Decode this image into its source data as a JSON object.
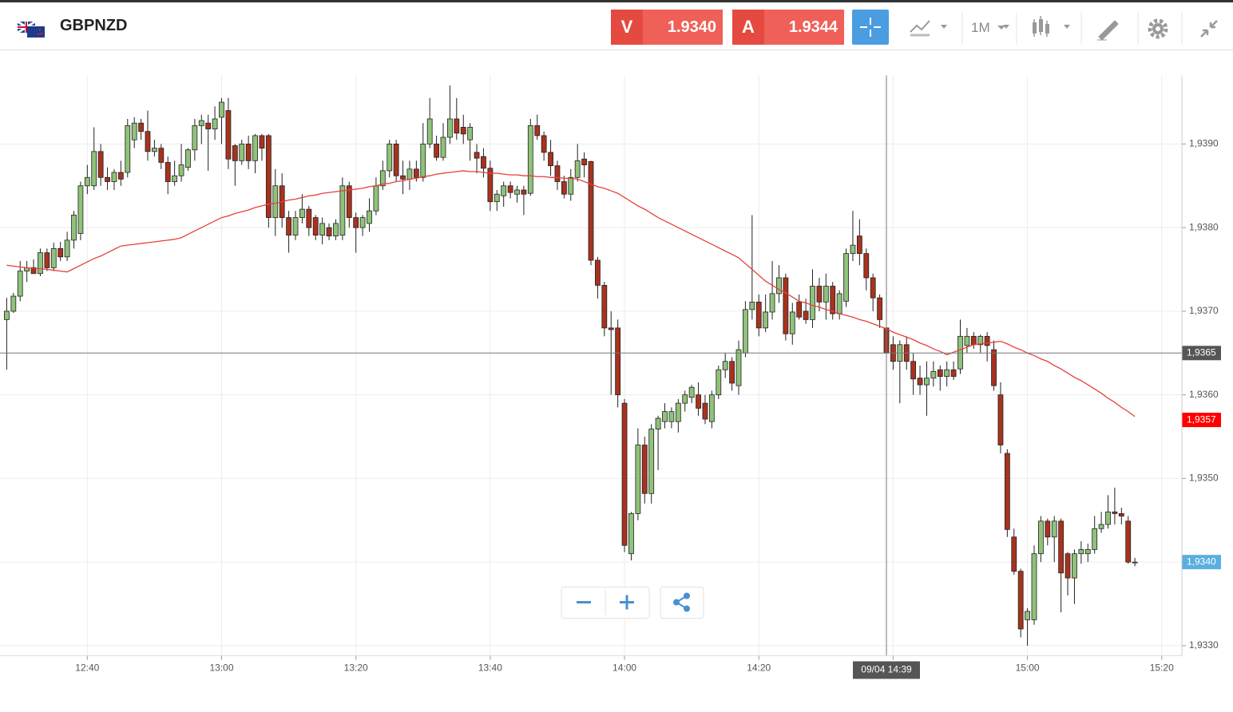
{
  "toolbar": {
    "symbol": "GBPNZD",
    "sell": {
      "label": "V",
      "price": "1.9340"
    },
    "buy": {
      "label": "A",
      "price": "1.9344"
    },
    "timeframe": "1M"
  },
  "chart_data": {
    "type": "candlestick",
    "x": [
      "12:28",
      "12:29",
      "12:30",
      "12:31",
      "12:32",
      "12:33",
      "12:34",
      "12:35",
      "12:36",
      "12:37",
      "12:38",
      "12:39",
      "12:40",
      "12:41",
      "12:42",
      "12:43",
      "12:44",
      "12:45",
      "12:46",
      "12:47",
      "12:48",
      "12:49",
      "12:50",
      "12:51",
      "12:52",
      "12:53",
      "12:54",
      "12:55",
      "12:56",
      "12:57",
      "12:58",
      "12:59",
      "13:00",
      "13:01",
      "13:02",
      "13:03",
      "13:04",
      "13:05",
      "13:06",
      "13:07",
      "13:08",
      "13:09",
      "13:10",
      "13:11",
      "13:12",
      "13:13",
      "13:14",
      "13:15",
      "13:16",
      "13:17",
      "13:18",
      "13:19",
      "13:20",
      "13:21",
      "13:22",
      "13:23",
      "13:24",
      "13:25",
      "13:26",
      "13:27",
      "13:28",
      "13:29",
      "13:30",
      "13:31",
      "13:32",
      "13:33",
      "13:34",
      "13:35",
      "13:36",
      "13:37",
      "13:38",
      "13:39",
      "13:40",
      "13:41",
      "13:42",
      "13:43",
      "13:44",
      "13:45",
      "13:46",
      "13:47",
      "13:48",
      "13:49",
      "13:50",
      "13:51",
      "13:52",
      "13:53",
      "13:54",
      "13:55",
      "13:56",
      "13:57",
      "13:58",
      "13:59",
      "14:00",
      "14:01",
      "14:02",
      "14:03",
      "14:04",
      "14:05",
      "14:06",
      "14:07",
      "14:08",
      "14:09",
      "14:10",
      "14:11",
      "14:12",
      "14:13",
      "14:14",
      "14:15",
      "14:16",
      "14:17",
      "14:18",
      "14:19",
      "14:20",
      "14:21",
      "14:22",
      "14:23",
      "14:24",
      "14:25",
      "14:26",
      "14:27",
      "14:28",
      "14:29",
      "14:30",
      "14:31",
      "14:32",
      "14:33",
      "14:34",
      "14:35",
      "14:36",
      "14:37",
      "14:38",
      "14:39",
      "14:40",
      "14:41",
      "14:42",
      "14:43",
      "14:44",
      "14:45",
      "14:46",
      "14:47",
      "14:48",
      "14:49",
      "14:50",
      "14:51",
      "14:52",
      "14:53",
      "14:54",
      "14:55",
      "14:56",
      "14:57",
      "14:58",
      "14:59",
      "15:00",
      "15:01",
      "15:02",
      "15:03",
      "15:04",
      "15:05",
      "15:06",
      "15:07",
      "15:08",
      "15:09",
      "15:10",
      "15:11",
      "15:12",
      "15:13",
      "15:14",
      "15:15",
      "15:16"
    ],
    "open": [
      1.9369,
      1.937,
      1.93718,
      1.93748,
      1.93752,
      1.93745,
      1.9377,
      1.93752,
      1.93775,
      1.93765,
      1.93785,
      1.93793,
      1.9385,
      1.9385,
      1.93891,
      1.9386,
      1.93855,
      1.93866,
      1.93866,
      1.93905,
      1.93925,
      1.93915,
      1.93891,
      1.93895,
      1.93878,
      1.93855,
      1.93862,
      1.93872,
      1.93893,
      1.93922,
      1.93925,
      1.93918,
      1.93932,
      1.9394,
      1.93898,
      1.9388,
      1.939,
      1.9388,
      1.9391,
      1.9391,
      1.93812,
      1.9385,
      1.93812,
      1.93791,
      1.93812,
      1.93822,
      1.93812,
      1.93791,
      1.938,
      1.9379,
      1.93791,
      1.9385,
      1.93812,
      1.938,
      1.93805,
      1.9382,
      1.9385,
      1.93868,
      1.939,
      1.93862,
      1.93858,
      1.9387,
      1.9386,
      1.939,
      1.939,
      1.93884,
      1.93908,
      1.9393,
      1.9392,
      1.93905,
      1.9389,
      1.93885,
      1.93871,
      1.93831,
      1.93838,
      1.9385,
      1.9384,
      1.93845,
      1.93841,
      1.93922,
      1.9391,
      1.9389,
      1.93874,
      1.93855,
      1.9384,
      1.9386,
      1.93882,
      1.93879,
      1.93761,
      1.93731,
      1.9368,
      1.9368,
      1.9359,
      1.9341,
      1.93458,
      1.9354,
      1.93482,
      1.93559,
      1.93568,
      1.93568,
      1.93568,
      1.9359,
      1.93597,
      1.936,
      1.9359,
      1.93568,
      1.936,
      1.9363,
      1.9364,
      1.93611,
      1.9365,
      1.93702,
      1.93711,
      1.9368,
      1.93699,
      1.93721,
      1.9374,
      1.93673,
      1.93711,
      1.937,
      1.9369,
      1.9373,
      1.93711,
      1.9373,
      1.93697,
      1.93712,
      1.93769,
      1.9379,
      1.93769,
      1.9374,
      1.93716,
      1.9368,
      1.9366,
      1.9364,
      1.9366,
      1.9364,
      1.9362,
      1.93612,
      1.9362,
      1.9363,
      1.93622,
      1.9363,
      1.93631,
      1.93659,
      1.9367,
      1.9366,
      1.9367,
      1.93654,
      1.936,
      1.9353,
      1.9343,
      1.93389,
      1.93331,
      1.93331,
      1.9341,
      1.93449,
      1.9343,
      1.93449,
      1.9341,
      1.93381,
      1.9341,
      1.9341,
      1.93415,
      1.9344,
      1.93445,
      1.9346,
      1.93458,
      1.93449,
      1.934
    ],
    "high": [
      1.93716,
      1.93722,
      1.9376,
      1.9376,
      1.93762,
      1.93775,
      1.93775,
      1.93782,
      1.93783,
      1.93795,
      1.9382,
      1.93855,
      1.93875,
      1.9392,
      1.939,
      1.93872,
      1.9387,
      1.9388,
      1.9393,
      1.93932,
      1.9393,
      1.9394,
      1.93905,
      1.939,
      1.93885,
      1.9388,
      1.939,
      1.93895,
      1.9393,
      1.93935,
      1.93935,
      1.93945,
      1.93955,
      1.93955,
      1.939,
      1.93905,
      1.9391,
      1.93912,
      1.93912,
      1.93912,
      1.9387,
      1.93865,
      1.9382,
      1.9382,
      1.9384,
      1.93826,
      1.93815,
      1.93812,
      1.93805,
      1.9381,
      1.9386,
      1.93855,
      1.93818,
      1.93815,
      1.93835,
      1.9386,
      1.9388,
      1.93905,
      1.93905,
      1.9388,
      1.9388,
      1.9388,
      1.93925,
      1.93955,
      1.9391,
      1.93925,
      1.9397,
      1.93955,
      1.93935,
      1.93925,
      1.939,
      1.93895,
      1.9388,
      1.93845,
      1.93855,
      1.93855,
      1.9385,
      1.9385,
      1.9393,
      1.93935,
      1.93915,
      1.93905,
      1.9388,
      1.93862,
      1.9387,
      1.939,
      1.9389,
      1.9388,
      1.93765,
      1.93735,
      1.937,
      1.9369,
      1.93595,
      1.9346,
      1.9356,
      1.9355,
      1.93565,
      1.93575,
      1.9359,
      1.93585,
      1.93595,
      1.93605,
      1.93612,
      1.93615,
      1.936,
      1.93605,
      1.93635,
      1.9365,
      1.93645,
      1.93665,
      1.93712,
      1.93815,
      1.9372,
      1.9372,
      1.9376,
      1.93755,
      1.93745,
      1.9371,
      1.9372,
      1.93715,
      1.9375,
      1.9374,
      1.93745,
      1.93735,
      1.93725,
      1.93775,
      1.9382,
      1.9381,
      1.93775,
      1.93745,
      1.9372,
      1.93688,
      1.9367,
      1.93665,
      1.9367,
      1.9365,
      1.93635,
      1.9364,
      1.9364,
      1.93635,
      1.9364,
      1.9364,
      1.9369,
      1.9368,
      1.93675,
      1.93672,
      1.93675,
      1.93665,
      1.93615,
      1.93535,
      1.9344,
      1.93392,
      1.93345,
      1.9342,
      1.93455,
      1.93452,
      1.93455,
      1.93452,
      1.93412,
      1.93415,
      1.93425,
      1.93422,
      1.93455,
      1.9346,
      1.9348,
      1.93489,
      1.93465,
      1.93455,
      1.93405
    ],
    "low": [
      1.9363,
      1.93698,
      1.93712,
      1.93735,
      1.93745,
      1.93742,
      1.93748,
      1.93748,
      1.9376,
      1.9376,
      1.93775,
      1.93785,
      1.9384,
      1.93845,
      1.9385,
      1.93845,
      1.93845,
      1.9385,
      1.9386,
      1.93895,
      1.93905,
      1.9388,
      1.93885,
      1.9387,
      1.9384,
      1.9385,
      1.93855,
      1.93868,
      1.9388,
      1.939,
      1.93868,
      1.93905,
      1.939,
      1.9387,
      1.9385,
      1.93875,
      1.9387,
      1.93865,
      1.9388,
      1.938,
      1.9379,
      1.938,
      1.9377,
      1.93785,
      1.93805,
      1.9379,
      1.93785,
      1.9378,
      1.93785,
      1.93785,
      1.93785,
      1.938,
      1.9377,
      1.9379,
      1.93795,
      1.93815,
      1.93845,
      1.9386,
      1.93855,
      1.9384,
      1.93845,
      1.93855,
      1.93855,
      1.93895,
      1.9388,
      1.9388,
      1.939,
      1.93905,
      1.939,
      1.9388,
      1.93865,
      1.9386,
      1.9382,
      1.9382,
      1.93825,
      1.93835,
      1.9383,
      1.93815,
      1.93838,
      1.93905,
      1.9388,
      1.93862,
      1.93845,
      1.93835,
      1.93832,
      1.93855,
      1.9386,
      1.93755,
      1.93715,
      1.9367,
      1.936,
      1.93585,
      1.93412,
      1.93402,
      1.9345,
      1.9347,
      1.9347,
      1.9351,
      1.9356,
      1.9356,
      1.93555,
      1.9358,
      1.9359,
      1.93575,
      1.93565,
      1.9356,
      1.93595,
      1.9362,
      1.93605,
      1.936,
      1.93645,
      1.9369,
      1.9367,
      1.93675,
      1.9369,
      1.9371,
      1.93665,
      1.9366,
      1.9369,
      1.93685,
      1.9368,
      1.937,
      1.9369,
      1.9369,
      1.9369,
      1.93705,
      1.9376,
      1.93755,
      1.93725,
      1.937,
      1.9368,
      1.9364,
      1.9363,
      1.9359,
      1.9363,
      1.936,
      1.936,
      1.93575,
      1.9361,
      1.93605,
      1.9361,
      1.93618,
      1.93625,
      1.9365,
      1.93655,
      1.9365,
      1.9364,
      1.93605,
      1.9353,
      1.9343,
      1.93385,
      1.9331,
      1.933,
      1.93325,
      1.934,
      1.9342,
      1.934,
      1.9334,
      1.9336,
      1.9335,
      1.93398,
      1.934,
      1.9341,
      1.93435,
      1.9344,
      1.93445,
      1.93445,
      1.93398,
      1.93395
    ],
    "close": [
      1.937,
      1.93718,
      1.93748,
      1.93752,
      1.93745,
      1.9377,
      1.93752,
      1.93775,
      1.93765,
      1.93785,
      1.93815,
      1.9385,
      1.9386,
      1.93891,
      1.9386,
      1.93855,
      1.93866,
      1.93858,
      1.93922,
      1.93925,
      1.93915,
      1.93891,
      1.93895,
      1.93878,
      1.93855,
      1.93862,
      1.93875,
      1.93893,
      1.93922,
      1.93928,
      1.93918,
      1.9393,
      1.9395,
      1.93882,
      1.9388,
      1.939,
      1.9388,
      1.9391,
      1.93895,
      1.93812,
      1.9385,
      1.93812,
      1.93791,
      1.93812,
      1.93822,
      1.938,
      1.93791,
      1.93805,
      1.9379,
      1.93805,
      1.9385,
      1.93812,
      1.938,
      1.93812,
      1.9382,
      1.9385,
      1.93868,
      1.939,
      1.93862,
      1.93858,
      1.9387,
      1.9386,
      1.939,
      1.9393,
      1.93884,
      1.93908,
      1.9393,
      1.93913,
      1.93912,
      1.9392,
      1.93883,
      1.93871,
      1.93831,
      1.9384,
      1.9385,
      1.93842,
      1.93845,
      1.9384,
      1.93922,
      1.9391,
      1.9389,
      1.93874,
      1.93855,
      1.9384,
      1.9386,
      1.9388,
      1.93875,
      1.93761,
      1.93731,
      1.9368,
      1.93678,
      1.936,
      1.9342,
      1.93458,
      1.9354,
      1.93482,
      1.93559,
      1.93572,
      1.9358,
      1.9358,
      1.9359,
      1.936,
      1.93609,
      1.93584,
      1.93571,
      1.936,
      1.9363,
      1.9364,
      1.93614,
      1.93654,
      1.93702,
      1.93711,
      1.9368,
      1.93699,
      1.93721,
      1.9374,
      1.93673,
      1.93699,
      1.93693,
      1.9369,
      1.9373,
      1.93711,
      1.9373,
      1.93697,
      1.93721,
      1.93769,
      1.93779,
      1.93769,
      1.9374,
      1.93716,
      1.9369,
      1.9365,
      1.9364,
      1.9366,
      1.9364,
      1.93619,
      1.93612,
      1.9362,
      1.93628,
      1.93622,
      1.9363,
      1.93622,
      1.9367,
      1.9367,
      1.9366,
      1.9367,
      1.93659,
      1.93611,
      1.9354,
      1.93439,
      1.93389,
      1.9332,
      1.93341,
      1.9341,
      1.93449,
      1.9343,
      1.93449,
      1.93387,
      1.93381,
      1.9341,
      1.93415,
      1.93415,
      1.9344,
      1.93445,
      1.9346,
      1.93458,
      1.93455,
      1.934,
      1.934
    ],
    "up_color": "#8fc27a",
    "down_color": "#a8321f",
    "ma": {
      "color": "#e8403a",
      "values": [
        1.93755,
        1.93754,
        1.93753,
        1.93752,
        1.93751,
        1.93751,
        1.9375,
        1.93749,
        1.93748,
        1.93747,
        1.93751,
        1.93755,
        1.93759,
        1.93763,
        1.93766,
        1.9377,
        1.93774,
        1.93778,
        1.93779,
        1.9378,
        1.93781,
        1.93782,
        1.93783,
        1.93784,
        1.93785,
        1.93786,
        1.93788,
        1.93792,
        1.93796,
        1.938,
        1.93804,
        1.93808,
        1.93812,
        1.93814,
        1.93817,
        1.93819,
        1.93821,
        1.93824,
        1.93826,
        1.93828,
        1.93829,
        1.93831,
        1.93833,
        1.93834,
        1.93836,
        1.93838,
        1.93839,
        1.93841,
        1.93842,
        1.93843,
        1.93844,
        1.93845,
        1.93846,
        1.93847,
        1.93849,
        1.9385,
        1.93852,
        1.93853,
        1.93855,
        1.93856,
        1.93858,
        1.93859,
        1.93861,
        1.93862,
        1.93864,
        1.93865,
        1.93866,
        1.93867,
        1.93868,
        1.93867,
        1.93867,
        1.93866,
        1.93865,
        1.93865,
        1.93864,
        1.93863,
        1.93863,
        1.93862,
        1.93862,
        1.93861,
        1.93861,
        1.9386,
        1.9386,
        1.93859,
        1.93859,
        1.93858,
        1.93855,
        1.93852,
        1.93849,
        1.93847,
        1.93844,
        1.93841,
        1.93836,
        1.93831,
        1.93826,
        1.93822,
        1.93817,
        1.93812,
        1.93808,
        1.93804,
        1.938,
        1.93796,
        1.93792,
        1.93788,
        1.93784,
        1.9378,
        1.93776,
        1.93772,
        1.93768,
        1.93764,
        1.93757,
        1.9375,
        1.93743,
        1.93736,
        1.93731,
        1.93726,
        1.93722,
        1.93717,
        1.93712,
        1.9371,
        1.93707,
        1.93705,
        1.93702,
        1.937,
        1.93697,
        1.93695,
        1.93693,
        1.9369,
        1.93688,
        1.93685,
        1.93682,
        1.93679,
        1.93675,
        1.93672,
        1.93669,
        1.93666,
        1.93662,
        1.93659,
        1.93655,
        1.93652,
        1.93648,
        1.93651,
        1.93654,
        1.93657,
        1.9366,
        1.93661,
        1.93662,
        1.93663,
        1.93664,
        1.93661,
        1.93657,
        1.93654,
        1.9365,
        1.93647,
        1.93643,
        1.9364,
        1.93635,
        1.93631,
        1.93626,
        1.93621,
        1.93617,
        1.93612,
        1.93607,
        1.93602,
        1.93596,
        1.93591,
        1.93585,
        1.9358,
        1.93574
      ]
    },
    "xlim": [
      "12:27",
      "15:23"
    ],
    "xticks": [
      "12:40",
      "13:00",
      "13:20",
      "13:40",
      "14:00",
      "14:20",
      "14:40",
      "15:00",
      "15:20"
    ],
    "ylim": [
      1.93288,
      1.93982
    ],
    "yticks": [
      {
        "value": 1.933,
        "label": "1,9330"
      },
      {
        "value": 1.934,
        "label": "1,9340"
      },
      {
        "value": 1.935,
        "label": "1,9350"
      },
      {
        "value": 1.936,
        "label": "1,9360"
      },
      {
        "value": 1.937,
        "label": "1,9370"
      },
      {
        "value": 1.938,
        "label": "1,9380"
      },
      {
        "value": 1.939,
        "label": "1,9390"
      }
    ],
    "grid": true,
    "markers": [
      {
        "value": 1.9365,
        "label": "1,9365",
        "color": "#555555"
      },
      {
        "value": 1.9357,
        "label": "1,9357",
        "color": "#ff0000"
      },
      {
        "value": 1.934,
        "label": "1,9340",
        "color": "#5aaee0"
      }
    ],
    "crosshair_label": "09/04 14:39"
  }
}
